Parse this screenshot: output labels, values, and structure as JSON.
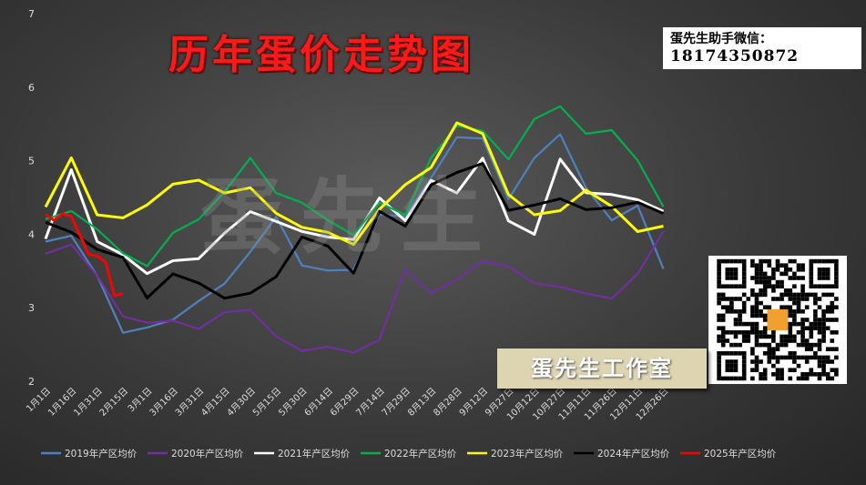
{
  "title": "历年蛋价走势图",
  "wechat": {
    "label": "蛋先生助手微信：",
    "number": "18174350872"
  },
  "badge": "蛋先生工作室",
  "watermark": "蛋先生",
  "chart_data": {
    "type": "line",
    "title": "历年蛋价走势图",
    "xlabel": "",
    "ylabel": "",
    "ylim": [
      2,
      7
    ],
    "yticks": [
      "2",
      "3",
      "4",
      "5",
      "6",
      "7"
    ],
    "xlim_days": [
      0,
      365
    ],
    "xtick_labels": [
      "1月1日",
      "1月16日",
      "1月31日",
      "2月15日",
      "3月1日",
      "3月16日",
      "3月31日",
      "4月15日",
      "4月30日",
      "5月15日",
      "5月30日",
      "6月14日",
      "6月29日",
      "7月14日",
      "7月29日",
      "8月13日",
      "8月28日",
      "9月12日",
      "9月27日",
      "10月12日",
      "10月27日",
      "11月11日",
      "11月26日",
      "12月11日",
      "12月26日"
    ],
    "x_days": [
      0,
      15,
      30,
      45,
      59,
      74,
      89,
      104,
      119,
      134,
      149,
      164,
      179,
      194,
      209,
      224,
      239,
      254,
      269,
      284,
      299,
      314,
      329,
      344,
      359
    ],
    "grid": false,
    "legend_position": "bottom",
    "series": [
      {
        "name": "2019年产区均价",
        "color": "#4f81bd",
        "values": [
          3.9,
          4.0,
          3.4,
          2.7,
          2.7,
          2.85,
          3.1,
          3.3,
          3.8,
          4.2,
          3.6,
          3.5,
          3.5,
          4.3,
          4.2,
          4.8,
          5.3,
          5.3,
          4.5,
          5.0,
          5.4,
          4.6,
          4.2,
          4.4,
          3.5
        ]
      },
      {
        "name": "2020年产区均价",
        "color": "#7030a0",
        "values": [
          3.7,
          3.9,
          3.4,
          2.9,
          2.8,
          2.8,
          2.75,
          2.9,
          3.0,
          2.6,
          2.4,
          2.5,
          2.35,
          2.6,
          3.5,
          3.2,
          3.4,
          3.6,
          3.6,
          3.3,
          3.3,
          3.2,
          3.1,
          3.5,
          4.0
        ]
      },
      {
        "name": "2021年产区均价",
        "color": "#ffffff",
        "values": [
          3.9,
          4.9,
          3.9,
          3.7,
          3.5,
          3.6,
          3.7,
          4.0,
          4.3,
          4.2,
          4.0,
          4.0,
          3.9,
          4.5,
          4.2,
          4.7,
          4.6,
          5.0,
          4.2,
          4.0,
          5.0,
          4.6,
          4.5,
          4.5,
          4.3
        ]
      },
      {
        "name": "2022年产区均价",
        "color": "#00b050",
        "values": [
          4.2,
          4.3,
          4.1,
          3.7,
          3.6,
          4.0,
          4.2,
          4.6,
          5.0,
          4.6,
          4.4,
          4.2,
          4.0,
          4.4,
          4.3,
          5.0,
          5.5,
          5.4,
          5.0,
          5.6,
          5.7,
          5.4,
          5.4,
          5.0,
          4.4
        ]
      },
      {
        "name": "2023年产区均价",
        "color": "#ffff00",
        "values": [
          4.4,
          5.0,
          4.3,
          4.2,
          4.4,
          4.7,
          4.7,
          4.6,
          4.6,
          4.3,
          4.1,
          4.0,
          3.9,
          4.3,
          4.7,
          4.9,
          5.5,
          5.4,
          4.5,
          4.3,
          4.3,
          4.6,
          4.4,
          4.0,
          4.15
        ]
      },
      {
        "name": "2024年产区均价",
        "color": "#000000",
        "values": [
          4.2,
          4.0,
          3.8,
          3.7,
          3.1,
          3.5,
          3.3,
          3.15,
          3.2,
          3.4,
          4.0,
          3.8,
          3.5,
          4.3,
          4.1,
          4.7,
          4.8,
          5.0,
          4.3,
          4.4,
          4.5,
          4.3,
          4.4,
          4.4,
          4.3
        ]
      },
      {
        "name": "2025年产区均价",
        "color": "#ff0000",
        "x_days": [
          0,
          5,
          10,
          15,
          20,
          25,
          30,
          35,
          40,
          45
        ],
        "values": [
          4.28,
          4.2,
          4.25,
          4.28,
          3.95,
          3.75,
          3.7,
          3.6,
          3.2,
          3.15
        ]
      }
    ]
  }
}
